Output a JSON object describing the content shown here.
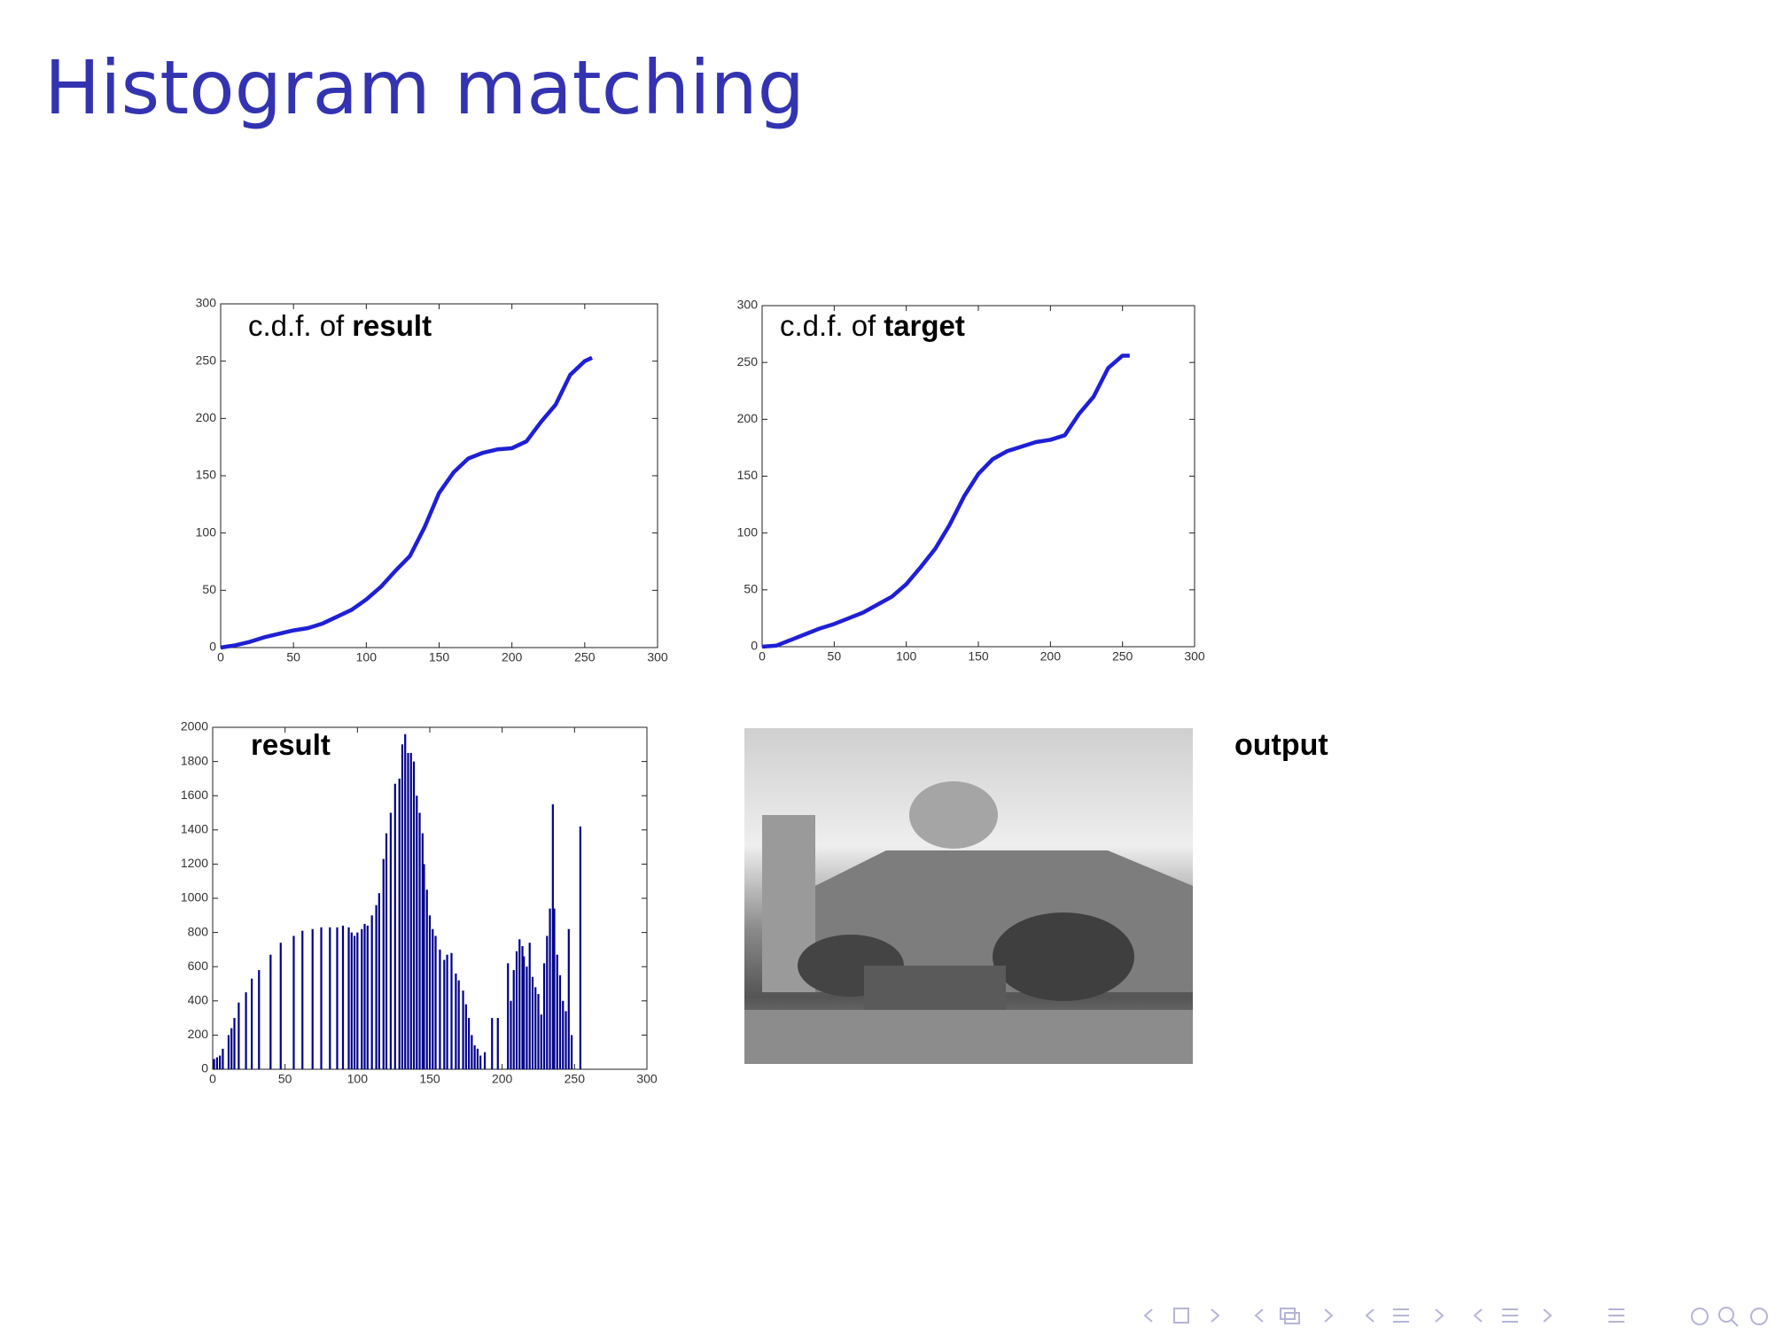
{
  "title": "Histogram matching",
  "chart_data": [
    {
      "type": "line",
      "title": "c.d.f. of",
      "title_bold": "result",
      "color": "#1f1fd6",
      "x": [
        0,
        10,
        20,
        30,
        40,
        50,
        60,
        70,
        80,
        90,
        100,
        110,
        120,
        130,
        140,
        150,
        160,
        170,
        180,
        190,
        200,
        210,
        220,
        230,
        240,
        250,
        255
      ],
      "values": [
        0,
        2,
        5,
        9,
        12,
        15,
        17,
        21,
        27,
        33,
        42,
        53,
        67,
        80,
        105,
        135,
        153,
        165,
        170,
        173,
        174,
        180,
        197,
        212,
        238,
        250,
        253
      ],
      "xlim": [
        0,
        300
      ],
      "ylim": [
        0,
        300
      ],
      "xticks": [
        0,
        50,
        100,
        150,
        200,
        250,
        300
      ],
      "yticks": [
        0,
        50,
        100,
        150,
        200,
        250,
        300
      ]
    },
    {
      "type": "line",
      "title": "c.d.f. of",
      "title_bold": "target",
      "color": "#1f1fd6",
      "x": [
        0,
        10,
        20,
        30,
        40,
        50,
        60,
        70,
        80,
        90,
        100,
        110,
        120,
        130,
        140,
        150,
        160,
        170,
        180,
        190,
        200,
        210,
        220,
        230,
        240,
        250,
        255
      ],
      "values": [
        0,
        1,
        6,
        11,
        16,
        20,
        25,
        30,
        37,
        44,
        55,
        70,
        86,
        107,
        132,
        152,
        165,
        172,
        176,
        180,
        182,
        186,
        205,
        220,
        245,
        256,
        256
      ],
      "xlim": [
        0,
        300
      ],
      "ylim": [
        0,
        300
      ],
      "xticks": [
        0,
        50,
        100,
        150,
        200,
        250,
        300
      ],
      "yticks": [
        0,
        50,
        100,
        150,
        200,
        250,
        300
      ]
    },
    {
      "type": "bar",
      "title_bold": "result",
      "color": "#00008b",
      "x": [
        1,
        3,
        5,
        7,
        11,
        13,
        15,
        18,
        23,
        27,
        32,
        40,
        47,
        56,
        62,
        69,
        75,
        81,
        86,
        90,
        94,
        96,
        98,
        100,
        103,
        105,
        107,
        110,
        113,
        115,
        118,
        120,
        123,
        126,
        129,
        131,
        133,
        135,
        137,
        139,
        141,
        143,
        145,
        146,
        148,
        150,
        152,
        154,
        157,
        160,
        162,
        165,
        168,
        170,
        173,
        175,
        177,
        179,
        181,
        183,
        185,
        188,
        193,
        197,
        204,
        206,
        208,
        210,
        212,
        214,
        215,
        217,
        219,
        221,
        223,
        225,
        227,
        229,
        231,
        233,
        235,
        236,
        238,
        240,
        242,
        244,
        246,
        248,
        254
      ],
      "values": [
        60,
        70,
        80,
        120,
        200,
        240,
        300,
        390,
        450,
        530,
        580,
        670,
        740,
        780,
        810,
        820,
        830,
        830,
        830,
        840,
        830,
        800,
        780,
        800,
        820,
        850,
        840,
        900,
        960,
        1030,
        1230,
        1380,
        1500,
        1670,
        1700,
        1900,
        1960,
        1850,
        1850,
        1800,
        1600,
        1500,
        1380,
        1200,
        1050,
        900,
        820,
        780,
        700,
        640,
        670,
        680,
        560,
        520,
        460,
        380,
        300,
        200,
        140,
        120,
        80,
        100,
        300,
        300,
        620,
        400,
        580,
        690,
        760,
        720,
        660,
        600,
        740,
        540,
        480,
        440,
        320,
        620,
        780,
        940,
        1550,
        940,
        670,
        550,
        400,
        340,
        820,
        200,
        1420
      ],
      "xlim": [
        0,
        300
      ],
      "ylim": [
        0,
        2000
      ],
      "xticks": [
        0,
        50,
        100,
        150,
        200,
        250,
        300
      ],
      "yticks": [
        0,
        200,
        400,
        600,
        800,
        1000,
        1200,
        1400,
        1600,
        1800,
        2000
      ]
    }
  ],
  "image": {
    "caption": "output"
  }
}
